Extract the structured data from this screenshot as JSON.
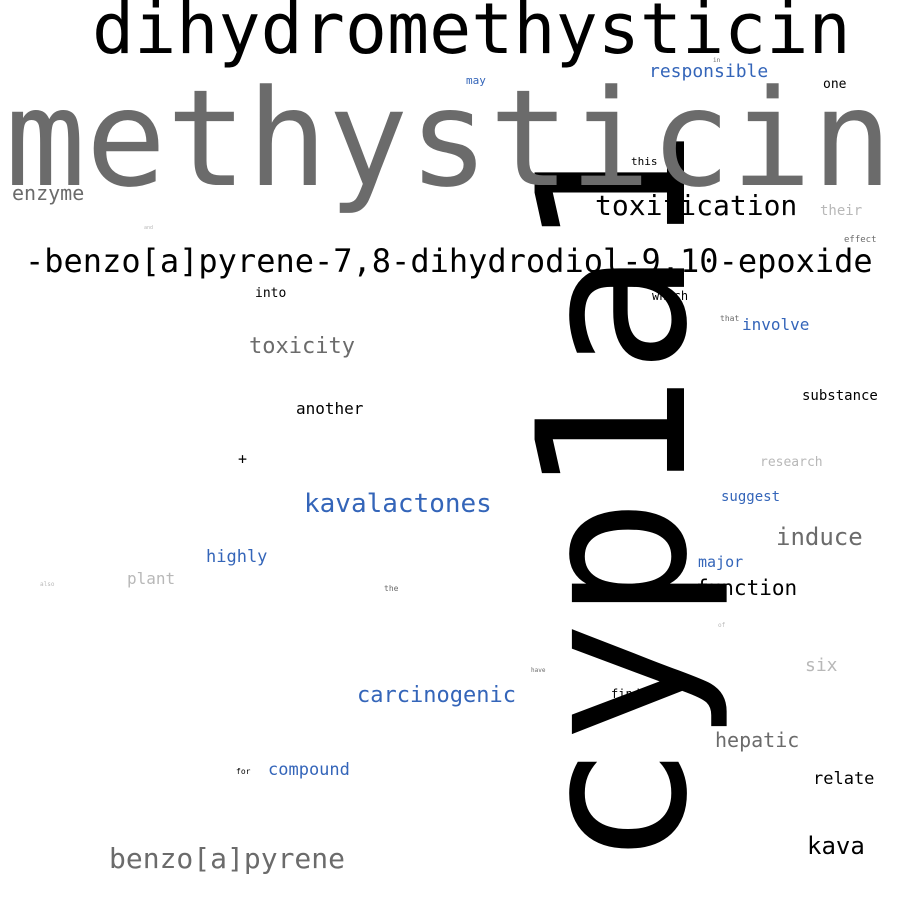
{
  "words": [
    {
      "text": "cyp1a1",
      "color": "#000000"
    },
    {
      "text": "methysticin",
      "color": "#6b6b6b"
    },
    {
      "text": "dihydromethysticin",
      "color": "#000000"
    },
    {
      "text": "-benzo[a]pyrene-7,8-dihydrodiol-9,10-epoxide",
      "color": "#000000"
    },
    {
      "text": "toxification",
      "color": "#000000"
    },
    {
      "text": "responsible",
      "color": "#3465b9"
    },
    {
      "text": "may",
      "color": "#3465b9"
    },
    {
      "text": "one",
      "color": "#000000"
    },
    {
      "text": "enzyme",
      "color": "#6b6b6b"
    },
    {
      "text": "this",
      "color": "#000000"
    },
    {
      "text": "their",
      "color": "#b8b8b8"
    },
    {
      "text": "effect",
      "color": "#6b6b6b"
    },
    {
      "text": "into",
      "color": "#000000"
    },
    {
      "text": "which",
      "color": "#000000"
    },
    {
      "text": "that",
      "color": "#6b6b6b"
    },
    {
      "text": "involve",
      "color": "#3465b9"
    },
    {
      "text": "toxicity",
      "color": "#6b6b6b"
    },
    {
      "text": "another",
      "color": "#000000"
    },
    {
      "text": "substance",
      "color": "#000000"
    },
    {
      "text": "+",
      "color": "#000000"
    },
    {
      "text": "research",
      "color": "#b8b8b8"
    },
    {
      "text": "kavalactones",
      "color": "#3465b9"
    },
    {
      "text": "suggest",
      "color": "#3465b9"
    },
    {
      "text": "induce",
      "color": "#6b6b6b"
    },
    {
      "text": "highly",
      "color": "#3465b9"
    },
    {
      "text": "major",
      "color": "#3465b9"
    },
    {
      "text": "plant",
      "color": "#b8b8b8"
    },
    {
      "text": "function",
      "color": "#000000"
    },
    {
      "text": "the",
      "color": "#6b6b6b"
    },
    {
      "text": "six",
      "color": "#b8b8b8"
    },
    {
      "text": "carcinogenic",
      "color": "#3465b9"
    },
    {
      "text": "find",
      "color": "#000000"
    },
    {
      "text": "hepatic",
      "color": "#6b6b6b"
    },
    {
      "text": "compound",
      "color": "#3465b9"
    },
    {
      "text": "for",
      "color": "#000000"
    },
    {
      "text": "relate",
      "color": "#000000"
    },
    {
      "text": "kava",
      "color": "#000000"
    },
    {
      "text": "benzo[a]pyrene",
      "color": "#6b6b6b"
    },
    {
      "text": "in",
      "color": "#6b6b6b"
    },
    {
      "text": "and",
      "color": "#b8b8b8"
    },
    {
      "text": "also",
      "color": "#b8b8b8"
    },
    {
      "text": "of",
      "color": "#b8b8b8"
    },
    {
      "text": "have",
      "color": "#6b6b6b"
    }
  ]
}
